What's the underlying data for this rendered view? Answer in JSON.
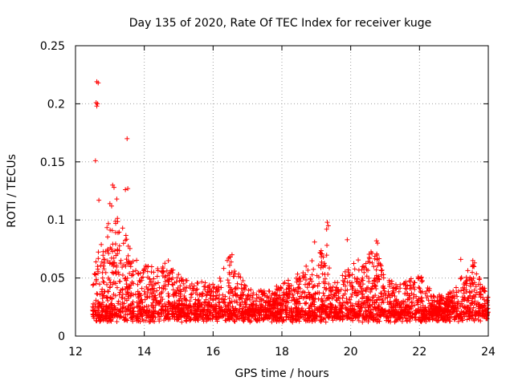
{
  "chart_data": {
    "type": "scatter",
    "title": "Day 135 of 2020, Rate Of TEC Index for receiver kuge",
    "xlabel": "GPS time / hours",
    "ylabel": "ROTI / TECUs",
    "xlim": [
      12,
      24
    ],
    "ylim": [
      0,
      0.25
    ],
    "x_ticks": [
      12,
      14,
      16,
      18,
      20,
      22,
      24
    ],
    "x_tick_labels": [
      "12",
      "14",
      "16",
      "18",
      "20",
      "22",
      "24"
    ],
    "y_ticks": [
      0,
      0.05,
      0.1,
      0.15,
      0.2,
      0.25
    ],
    "y_tick_labels": [
      "0",
      "0.05",
      "0.1",
      "0.15",
      "0.2",
      "0.25"
    ],
    "grid": true,
    "marker": "+",
    "color": "#ff0000",
    "bulk": {
      "x_range": [
        12.5,
        24
      ],
      "envelope": [
        [
          12.5,
          0.055
        ],
        [
          12.8,
          0.09
        ],
        [
          13.0,
          0.1
        ],
        [
          13.3,
          0.105
        ],
        [
          13.6,
          0.075
        ],
        [
          14.0,
          0.06
        ],
        [
          14.6,
          0.07
        ],
        [
          15.2,
          0.05
        ],
        [
          16.0,
          0.045
        ],
        [
          16.5,
          0.07
        ],
        [
          17.0,
          0.04
        ],
        [
          17.5,
          0.04
        ],
        [
          18.0,
          0.045
        ],
        [
          18.5,
          0.055
        ],
        [
          19.0,
          0.07
        ],
        [
          19.3,
          0.09
        ],
        [
          19.6,
          0.05
        ],
        [
          20.0,
          0.06
        ],
        [
          20.7,
          0.08
        ],
        [
          21.0,
          0.05
        ],
        [
          21.5,
          0.045
        ],
        [
          22.0,
          0.055
        ],
        [
          22.5,
          0.035
        ],
        [
          23.0,
          0.04
        ],
        [
          23.5,
          0.065
        ],
        [
          24.0,
          0.035
        ]
      ],
      "floor": 0.008
    },
    "outliers": [
      {
        "x": 12.62,
        "y": 0.219
      },
      {
        "x": 12.66,
        "y": 0.218
      },
      {
        "x": 12.6,
        "y": 0.201
      },
      {
        "x": 12.64,
        "y": 0.2
      },
      {
        "x": 12.62,
        "y": 0.198
      },
      {
        "x": 12.58,
        "y": 0.151
      },
      {
        "x": 13.5,
        "y": 0.17
      },
      {
        "x": 13.08,
        "y": 0.13
      },
      {
        "x": 13.12,
        "y": 0.128
      },
      {
        "x": 13.45,
        "y": 0.126
      },
      {
        "x": 13.52,
        "y": 0.127
      },
      {
        "x": 13.2,
        "y": 0.118
      },
      {
        "x": 12.68,
        "y": 0.117
      },
      {
        "x": 13.0,
        "y": 0.114
      },
      {
        "x": 13.05,
        "y": 0.112
      },
      {
        "x": 19.32,
        "y": 0.098
      },
      {
        "x": 19.35,
        "y": 0.095
      },
      {
        "x": 19.3,
        "y": 0.092
      },
      {
        "x": 20.75,
        "y": 0.082
      },
      {
        "x": 20.78,
        "y": 0.08
      },
      {
        "x": 19.9,
        "y": 0.083
      },
      {
        "x": 18.95,
        "y": 0.081
      },
      {
        "x": 23.2,
        "y": 0.066
      },
      {
        "x": 23.55,
        "y": 0.065
      },
      {
        "x": 23.6,
        "y": 0.063
      },
      {
        "x": 16.55,
        "y": 0.07
      },
      {
        "x": 16.5,
        "y": 0.068
      }
    ]
  }
}
